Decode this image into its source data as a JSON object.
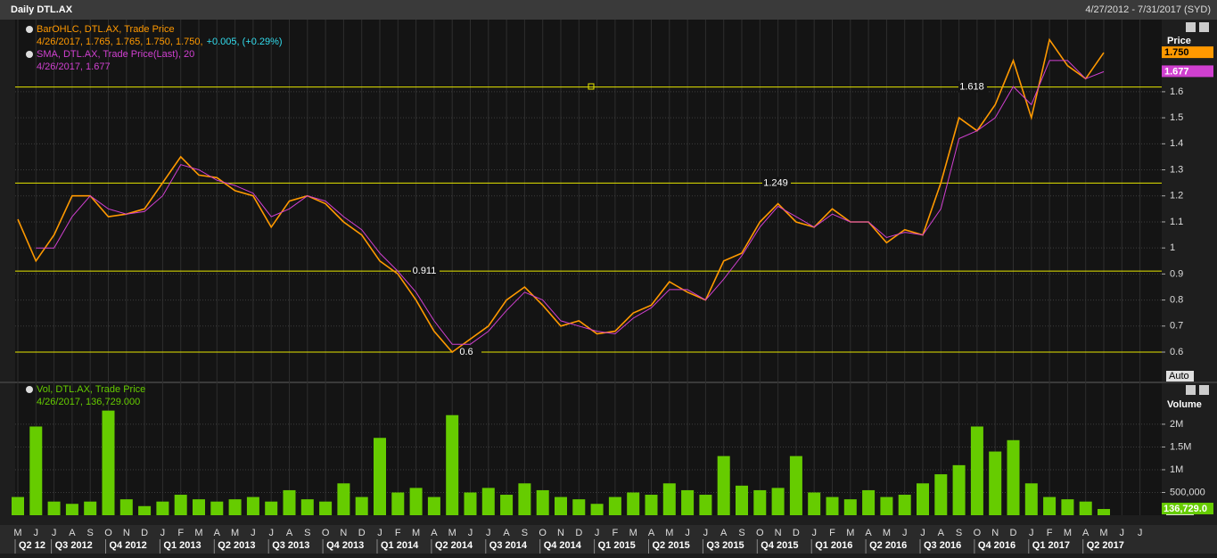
{
  "header": {
    "title": "Daily DTL.AX",
    "range": "4/27/2012 - 7/31/2017 (SYD)"
  },
  "chart_data": [
    {
      "type": "line",
      "y_label": "Price",
      "auto_button": "Auto",
      "ylim": [
        0.487,
        1.877
      ],
      "yticks": [
        0.6,
        0.7,
        0.8,
        0.9,
        1,
        1.1,
        1.2,
        1.3,
        1.4,
        1.5,
        1.6
      ],
      "grid": true,
      "levels": [
        0.6,
        0.911,
        1.249,
        1.618
      ],
      "level_color": "#e6e600",
      "series": [
        {
          "name": "BarOHLC, DTL.AX, Trade Price",
          "color": "#ff9900",
          "readout": "4/26/2017, 1.765, 1.765, 1.750, 1.750,",
          "change": "+0.005, (+0.29%)",
          "last_label": "1.750",
          "values": [
            1.11,
            0.95,
            1.05,
            1.2,
            1.2,
            1.12,
            1.13,
            1.15,
            1.25,
            1.35,
            1.28,
            1.27,
            1.22,
            1.2,
            1.08,
            1.18,
            1.2,
            1.17,
            1.1,
            1.05,
            0.95,
            0.9,
            0.8,
            0.68,
            0.6,
            0.65,
            0.7,
            0.8,
            0.85,
            0.78,
            0.7,
            0.72,
            0.67,
            0.68,
            0.75,
            0.78,
            0.87,
            0.83,
            0.8,
            0.95,
            0.98,
            1.1,
            1.17,
            1.1,
            1.08,
            1.15,
            1.1,
            1.1,
            1.02,
            1.07,
            1.05,
            1.25,
            1.5,
            1.45,
            1.55,
            1.72,
            1.5,
            1.8,
            1.7,
            1.65,
            1.75,
            null,
            null
          ]
        },
        {
          "name": "SMA, DTL.AX, Trade Price(Last), 20",
          "color": "#d040d0",
          "readout": "4/26/2017, 1.677",
          "last_label": "1.677",
          "values": [
            null,
            1.0,
            1.0,
            1.12,
            1.2,
            1.15,
            1.13,
            1.14,
            1.2,
            1.32,
            1.3,
            1.26,
            1.24,
            1.21,
            1.12,
            1.15,
            1.2,
            1.18,
            1.12,
            1.07,
            0.98,
            0.91,
            0.83,
            0.72,
            0.63,
            0.63,
            0.68,
            0.76,
            0.83,
            0.8,
            0.72,
            0.7,
            0.68,
            0.67,
            0.73,
            0.77,
            0.84,
            0.84,
            0.8,
            0.88,
            0.97,
            1.08,
            1.16,
            1.12,
            1.08,
            1.13,
            1.1,
            1.1,
            1.04,
            1.06,
            1.05,
            1.15,
            1.42,
            1.45,
            1.5,
            1.62,
            1.55,
            1.72,
            1.72,
            1.65,
            1.677,
            null,
            null
          ]
        }
      ]
    },
    {
      "type": "bar",
      "y_label": "Volume",
      "auto_button": "Auto",
      "name": "Vol, DTL.AX, Trade Price",
      "readout": "4/26/2017, 136,729.000",
      "last_label": "136,729.0",
      "color": "#66cc00",
      "ylim": [
        0,
        2900000
      ],
      "yticks": [
        {
          "value": 500000,
          "label": "500,000"
        },
        {
          "value": 1000000,
          "label": "1M"
        },
        {
          "value": 1500000,
          "label": "1.5M"
        },
        {
          "value": 2000000,
          "label": "2M"
        }
      ],
      "grid": true,
      "categories": [
        "M",
        "J",
        "J",
        "A",
        "S",
        "O",
        "N",
        "D",
        "J",
        "F",
        "M",
        "A",
        "M",
        "J",
        "J",
        "A",
        "S",
        "O",
        "N",
        "D",
        "J",
        "F",
        "M",
        "A",
        "M",
        "J",
        "J",
        "A",
        "S",
        "O",
        "N",
        "D",
        "J",
        "F",
        "M",
        "A",
        "M",
        "J",
        "J",
        "A",
        "S",
        "O",
        "N",
        "D",
        "J",
        "F",
        "M",
        "A",
        "M",
        "J",
        "J",
        "A",
        "S",
        "O",
        "N",
        "D",
        "J",
        "F",
        "M",
        "A",
        "M",
        "J",
        "J"
      ],
      "quarters": [
        "Q2 12",
        "Q3 2012",
        "Q4 2012",
        "Q1 2013",
        "Q2 2013",
        "Q3 2013",
        "Q4 2013",
        "Q1 2014",
        "Q2 2014",
        "Q3 2014",
        "Q4 2014",
        "Q1 2015",
        "Q2 2015",
        "Q3 2015",
        "Q4 2015",
        "Q1 2016",
        "Q2 2016",
        "Q3 2016",
        "Q4 2016",
        "Q1 2017",
        "Q2 2017"
      ],
      "values": [
        400000,
        1950000,
        300000,
        250000,
        300000,
        2300000,
        350000,
        200000,
        300000,
        450000,
        350000,
        300000,
        350000,
        400000,
        300000,
        550000,
        350000,
        300000,
        700000,
        400000,
        1700000,
        500000,
        600000,
        400000,
        2200000,
        500000,
        600000,
        450000,
        700000,
        550000,
        400000,
        350000,
        250000,
        400000,
        500000,
        450000,
        700000,
        550000,
        450000,
        1300000,
        650000,
        550000,
        600000,
        1300000,
        500000,
        400000,
        350000,
        550000,
        400000,
        450000,
        700000,
        900000,
        1100000,
        1950000,
        1400000,
        1650000,
        700000,
        400000,
        350000,
        300000,
        136729,
        null,
        null
      ]
    }
  ]
}
